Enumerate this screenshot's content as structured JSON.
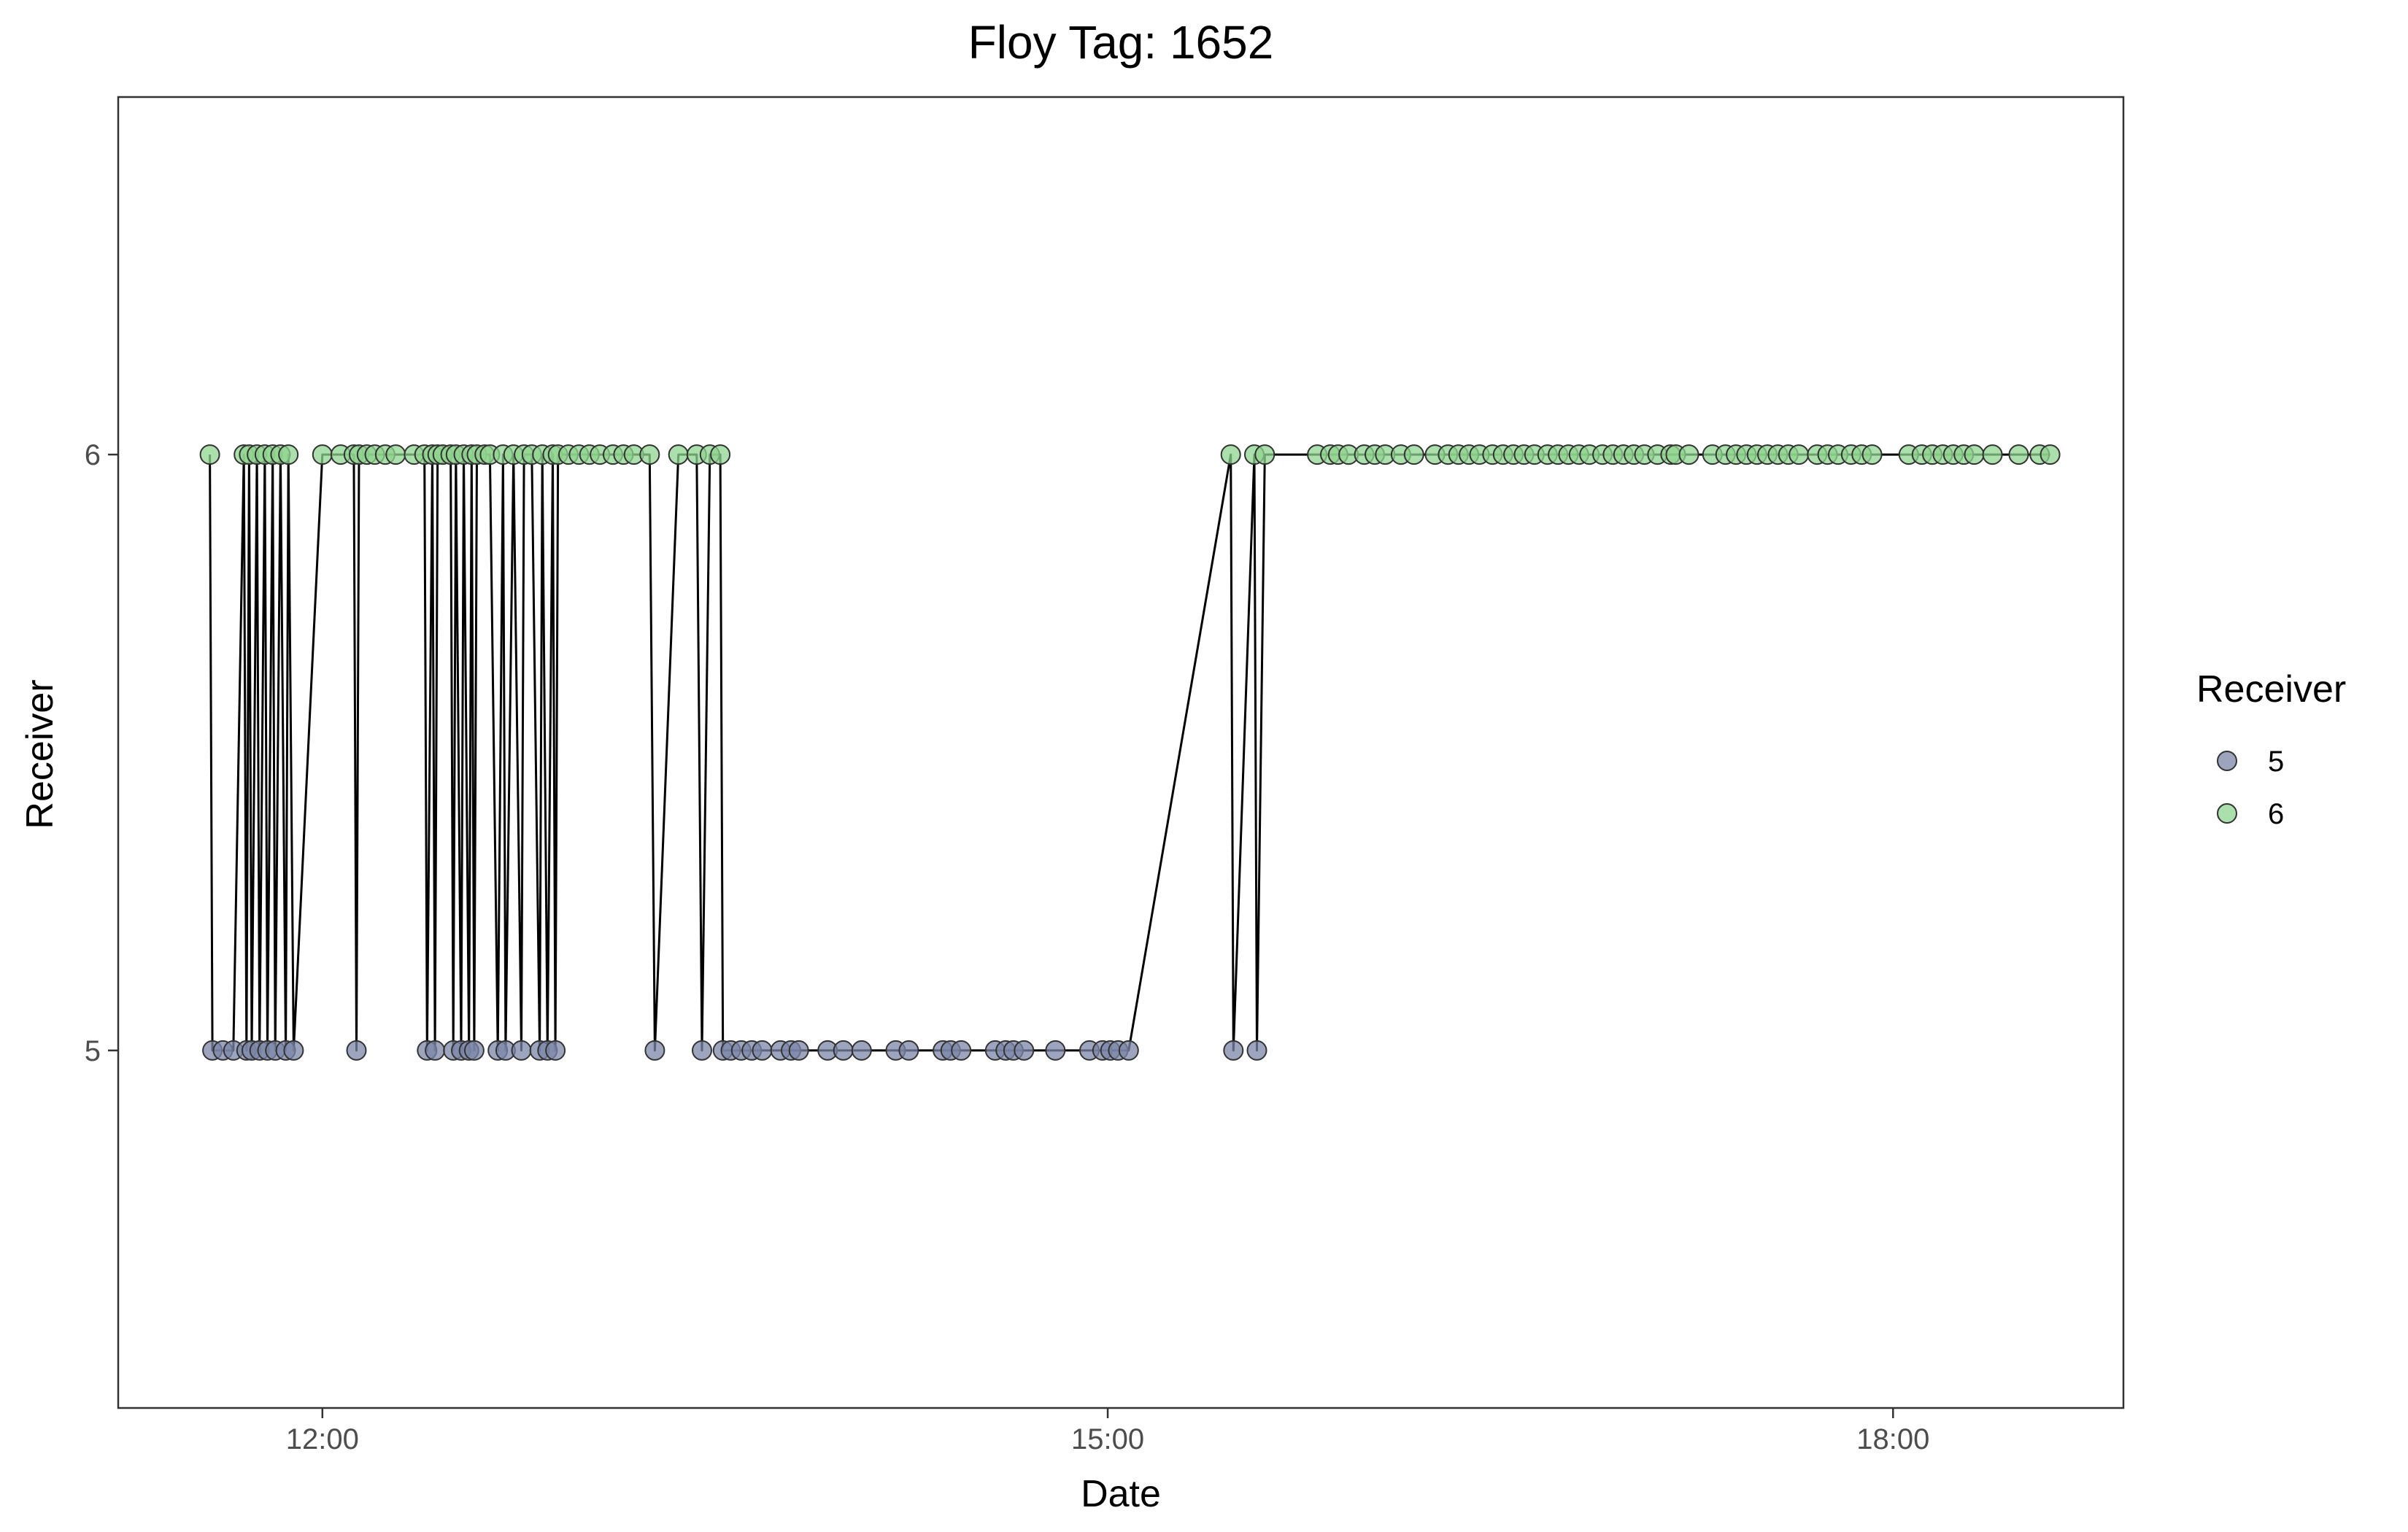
{
  "chart_data": {
    "type": "scatter",
    "title": "Floy Tag: 1652",
    "xlabel": "Date",
    "ylabel": "Receiver",
    "x_unit": "time of day (hours)",
    "xlim": [
      11.22,
      18.88
    ],
    "ylim": [
      4.4,
      6.6
    ],
    "x_ticks": [
      {
        "value": 12,
        "label": "12:00"
      },
      {
        "value": 15,
        "label": "15:00"
      },
      {
        "value": 18,
        "label": "18:00"
      }
    ],
    "y_ticks": [
      {
        "value": 5,
        "label": "5"
      },
      {
        "value": 6,
        "label": "6"
      }
    ],
    "grid": false,
    "connecting_line": true,
    "legend": {
      "title": "Receiver",
      "placement": "right",
      "entries": [
        {
          "label": "5",
          "color": "#7b86a8"
        },
        {
          "label": "6",
          "color": "#8fd48f"
        }
      ]
    },
    "series": [
      {
        "name": "detections",
        "points": [
          [
            11.57,
            6
          ],
          [
            11.58,
            5
          ],
          [
            11.62,
            5
          ],
          [
            11.66,
            5
          ],
          [
            11.7,
            6
          ],
          [
            11.71,
            5
          ],
          [
            11.72,
            6
          ],
          [
            11.73,
            5
          ],
          [
            11.75,
            6
          ],
          [
            11.76,
            5
          ],
          [
            11.78,
            6
          ],
          [
            11.79,
            5
          ],
          [
            11.81,
            6
          ],
          [
            11.82,
            5
          ],
          [
            11.84,
            6
          ],
          [
            11.86,
            5
          ],
          [
            11.87,
            6
          ],
          [
            11.89,
            5
          ],
          [
            12.0,
            6
          ],
          [
            12.07,
            6
          ],
          [
            12.12,
            6
          ],
          [
            12.13,
            5
          ],
          [
            12.14,
            6
          ],
          [
            12.17,
            6
          ],
          [
            12.2,
            6
          ],
          [
            12.24,
            6
          ],
          [
            12.28,
            6
          ],
          [
            12.35,
            6
          ],
          [
            12.39,
            6
          ],
          [
            12.4,
            5
          ],
          [
            12.42,
            6
          ],
          [
            12.43,
            5
          ],
          [
            12.44,
            6
          ],
          [
            12.46,
            6
          ],
          [
            12.49,
            6
          ],
          [
            12.5,
            5
          ],
          [
            12.51,
            6
          ],
          [
            12.53,
            5
          ],
          [
            12.54,
            6
          ],
          [
            12.56,
            5
          ],
          [
            12.57,
            6
          ],
          [
            12.58,
            5
          ],
          [
            12.59,
            6
          ],
          [
            12.62,
            6
          ],
          [
            12.64,
            6
          ],
          [
            12.67,
            5
          ],
          [
            12.69,
            6
          ],
          [
            12.7,
            5
          ],
          [
            12.73,
            6
          ],
          [
            12.76,
            5
          ],
          [
            12.77,
            6
          ],
          [
            12.8,
            6
          ],
          [
            12.83,
            5
          ],
          [
            12.84,
            6
          ],
          [
            12.86,
            5
          ],
          [
            12.88,
            6
          ],
          [
            12.89,
            5
          ],
          [
            12.9,
            6
          ],
          [
            12.94,
            6
          ],
          [
            12.98,
            6
          ],
          [
            13.02,
            6
          ],
          [
            13.06,
            6
          ],
          [
            13.11,
            6
          ],
          [
            13.15,
            6
          ],
          [
            13.19,
            6
          ],
          [
            13.25,
            6
          ],
          [
            13.27,
            5
          ],
          [
            13.36,
            6
          ],
          [
            13.43,
            6
          ],
          [
            13.45,
            5
          ],
          [
            13.48,
            6
          ],
          [
            13.52,
            6
          ],
          [
            13.53,
            5
          ],
          [
            13.56,
            5
          ],
          [
            13.6,
            5
          ],
          [
            13.64,
            5
          ],
          [
            13.68,
            5
          ],
          [
            13.75,
            5
          ],
          [
            13.79,
            5
          ],
          [
            13.82,
            5
          ],
          [
            13.93,
            5
          ],
          [
            13.99,
            5
          ],
          [
            14.06,
            5
          ],
          [
            14.19,
            5
          ],
          [
            14.24,
            5
          ],
          [
            14.37,
            5
          ],
          [
            14.4,
            5
          ],
          [
            14.44,
            5
          ],
          [
            14.57,
            5
          ],
          [
            14.61,
            5
          ],
          [
            14.64,
            5
          ],
          [
            14.68,
            5
          ],
          [
            14.8,
            5
          ],
          [
            14.93,
            5
          ],
          [
            14.98,
            5
          ],
          [
            15.01,
            5
          ],
          [
            15.04,
            5
          ],
          [
            15.08,
            5
          ],
          [
            15.47,
            6
          ],
          [
            15.48,
            5
          ],
          [
            15.56,
            6
          ],
          [
            15.57,
            5
          ],
          [
            15.6,
            6
          ],
          [
            15.8,
            6
          ],
          [
            15.85,
            6
          ],
          [
            15.88,
            6
          ],
          [
            15.92,
            6
          ],
          [
            15.98,
            6
          ],
          [
            16.02,
            6
          ],
          [
            16.06,
            6
          ],
          [
            16.12,
            6
          ],
          [
            16.17,
            6
          ],
          [
            16.25,
            6
          ],
          [
            16.3,
            6
          ],
          [
            16.34,
            6
          ],
          [
            16.38,
            6
          ],
          [
            16.42,
            6
          ],
          [
            16.47,
            6
          ],
          [
            16.51,
            6
          ],
          [
            16.55,
            6
          ],
          [
            16.59,
            6
          ],
          [
            16.63,
            6
          ],
          [
            16.68,
            6
          ],
          [
            16.72,
            6
          ],
          [
            16.76,
            6
          ],
          [
            16.8,
            6
          ],
          [
            16.84,
            6
          ],
          [
            16.89,
            6
          ],
          [
            16.93,
            6
          ],
          [
            16.97,
            6
          ],
          [
            17.01,
            6
          ],
          [
            17.05,
            6
          ],
          [
            17.1,
            6
          ],
          [
            17.15,
            6
          ],
          [
            17.17,
            6
          ],
          [
            17.22,
            6
          ],
          [
            17.31,
            6
          ],
          [
            17.36,
            6
          ],
          [
            17.4,
            6
          ],
          [
            17.44,
            6
          ],
          [
            17.48,
            6
          ],
          [
            17.52,
            6
          ],
          [
            17.56,
            6
          ],
          [
            17.6,
            6
          ],
          [
            17.64,
            6
          ],
          [
            17.71,
            6
          ],
          [
            17.75,
            6
          ],
          [
            17.79,
            6
          ],
          [
            17.84,
            6
          ],
          [
            17.88,
            6
          ],
          [
            17.92,
            6
          ],
          [
            18.06,
            6
          ],
          [
            18.11,
            6
          ],
          [
            18.15,
            6
          ],
          [
            18.19,
            6
          ],
          [
            18.23,
            6
          ],
          [
            18.27,
            6
          ],
          [
            18.31,
            6
          ],
          [
            18.38,
            6
          ],
          [
            18.48,
            6
          ],
          [
            18.56,
            6
          ],
          [
            18.6,
            6
          ]
        ]
      }
    ]
  }
}
